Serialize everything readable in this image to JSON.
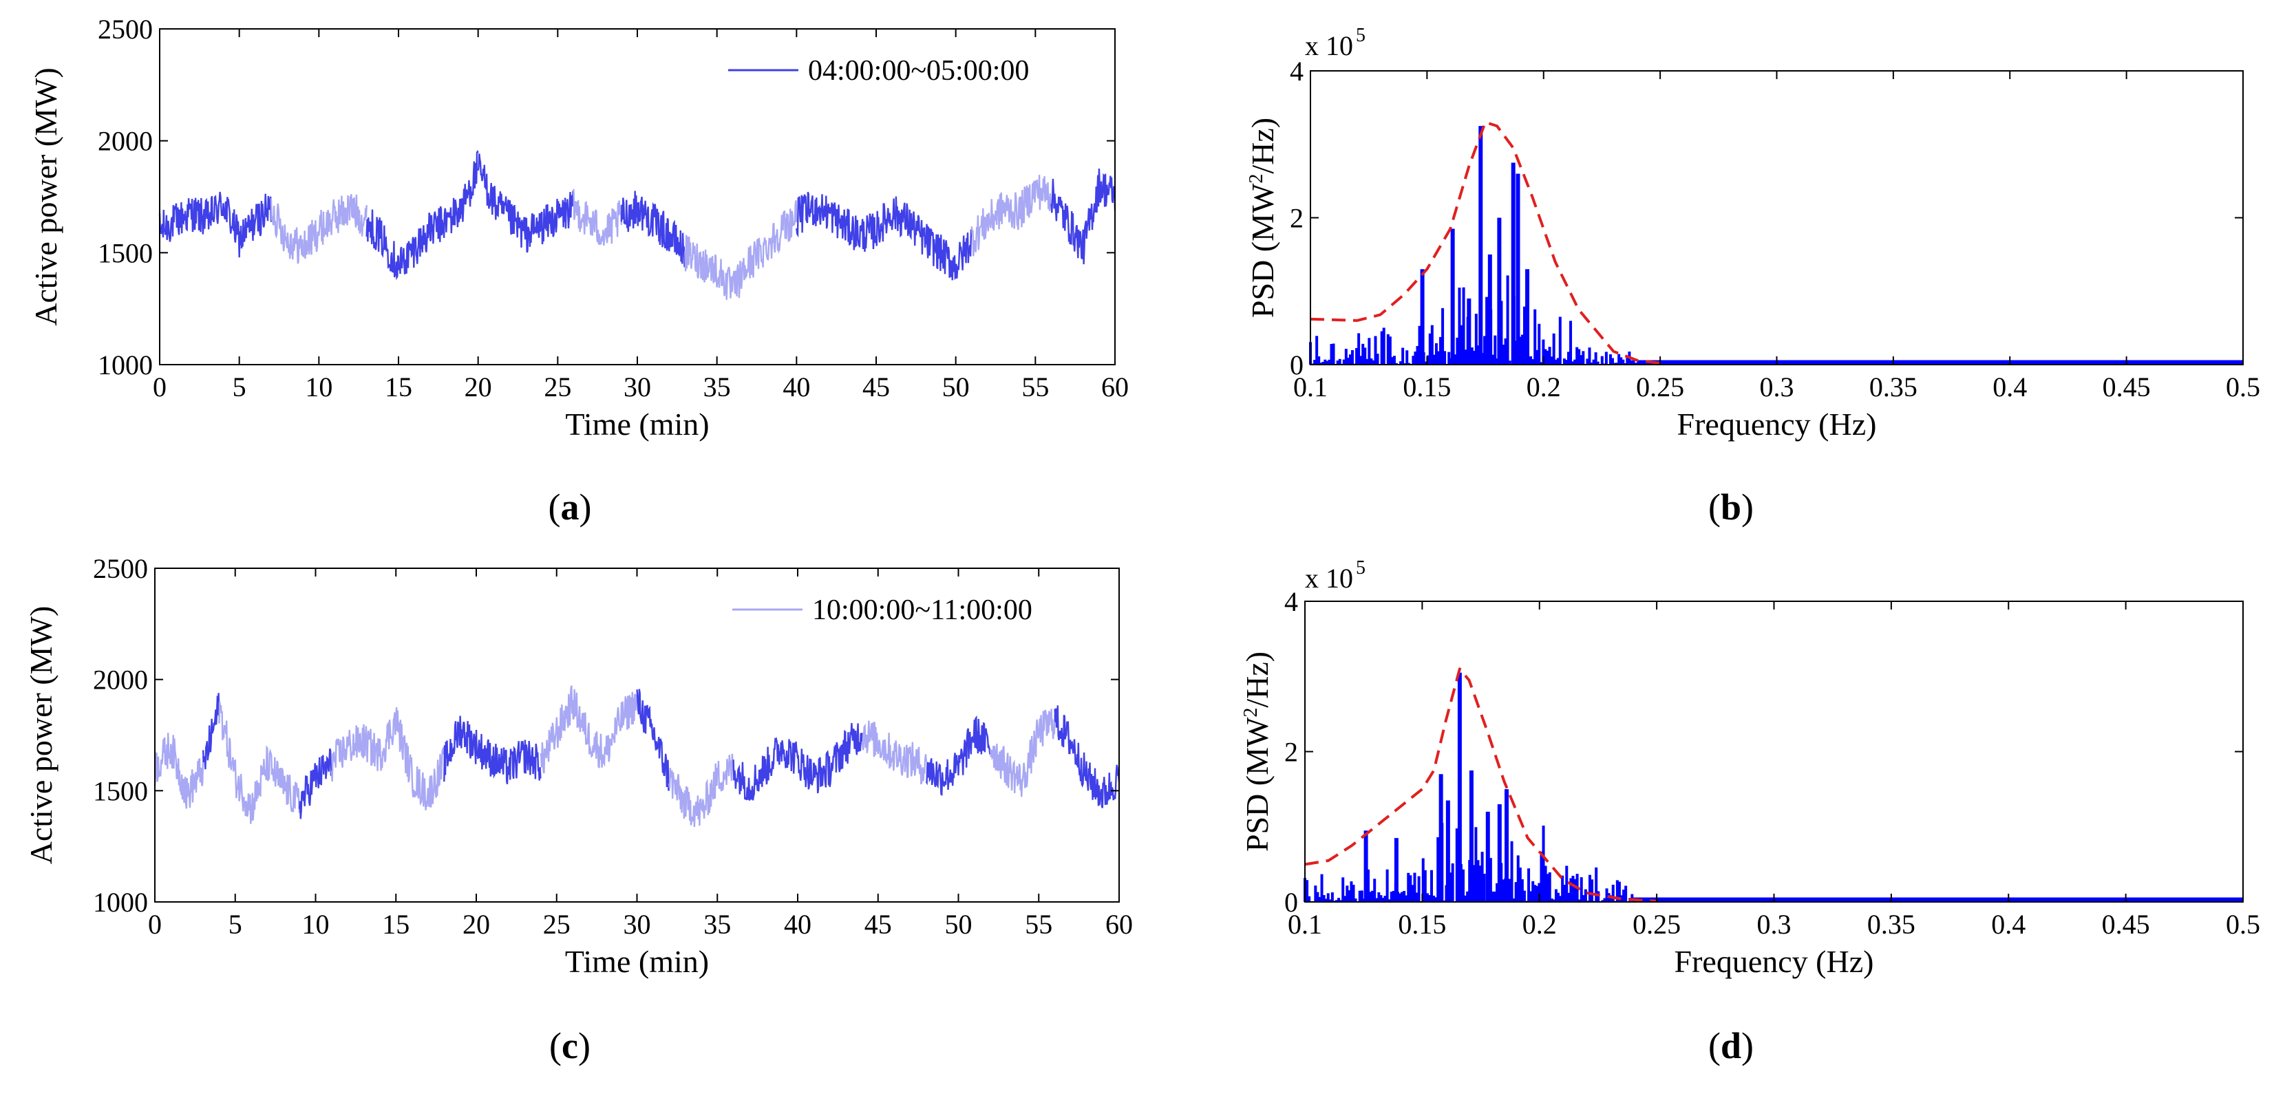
{
  "colors": {
    "dark_series": "#4040e8",
    "light_series": "#a8a8f4",
    "psd_bar": "#0000ff",
    "envelope": "#e02020",
    "axes": "#000000"
  },
  "chart_data": [
    {
      "id": "a",
      "type": "line",
      "caption_letter": "a",
      "xlabel": "Time (min)",
      "ylabel": "Active power (MW)",
      "xlim": [
        0,
        60
      ],
      "ylim": [
        1000,
        2500
      ],
      "xticks": [
        0,
        5,
        10,
        15,
        20,
        25,
        30,
        35,
        40,
        45,
        50,
        55,
        60
      ],
      "yticks": [
        1000,
        1500,
        2000,
        2500
      ],
      "legend": "04:00:00~05:00:00",
      "legend_color": "#4040e8",
      "series": {
        "name": "04:00:00~05:00:00",
        "t": [
          0,
          1,
          2,
          3,
          4,
          5,
          6,
          7,
          8,
          9,
          10,
          11,
          12,
          13,
          14,
          15,
          16,
          17,
          18,
          19,
          20,
          21,
          22,
          23,
          24,
          25,
          26,
          27,
          28,
          29,
          30,
          31,
          32,
          33,
          34,
          35,
          36,
          37,
          38,
          39,
          40,
          41,
          42,
          43,
          44,
          45,
          46,
          47,
          48,
          49,
          50,
          51,
          52,
          53,
          54,
          55,
          56,
          57,
          58,
          59,
          60
        ],
        "values": [
          1600,
          1640,
          1680,
          1650,
          1720,
          1560,
          1640,
          1700,
          1560,
          1520,
          1600,
          1660,
          1700,
          1640,
          1560,
          1440,
          1520,
          1600,
          1640,
          1700,
          1880,
          1720,
          1650,
          1580,
          1620,
          1660,
          1700,
          1640,
          1580,
          1660,
          1700,
          1640,
          1580,
          1500,
          1460,
          1420,
          1330,
          1450,
          1520,
          1600,
          1660,
          1700,
          1680,
          1620,
          1580,
          1600,
          1680,
          1640,
          1560,
          1500,
          1440,
          1560,
          1640,
          1700,
          1680,
          1780,
          1760,
          1640,
          1520,
          1800,
          1760
        ],
        "segments": [
          [
            0,
            7,
            "dark"
          ],
          [
            7,
            13,
            "light"
          ],
          [
            13,
            20,
            "dark"
          ],
          [
            20,
            26,
            "dark"
          ],
          [
            26,
            29,
            "light"
          ],
          [
            29,
            33,
            "dark"
          ],
          [
            33,
            40,
            "light"
          ],
          [
            40,
            51,
            "dark"
          ],
          [
            51,
            56,
            "light"
          ],
          [
            56,
            60,
            "dark"
          ]
        ]
      }
    },
    {
      "id": "b",
      "type": "bar",
      "caption_letter": "b",
      "xlabel": "Frequency (Hz)",
      "ylabel_main": "PSD (MW",
      "ylabel_sup": "2",
      "ylabel_end": "/Hz)",
      "multiplier_main": "x 10",
      "multiplier_sup": "5",
      "xlim": [
        0.1,
        0.5
      ],
      "ylim": [
        0,
        4
      ],
      "xticks": [
        "0.1",
        "0.15",
        "0.2",
        "0.25",
        "0.3",
        "0.35",
        "0.4",
        "0.45",
        "0.5"
      ],
      "yticks": [
        "0",
        "2",
        "4"
      ],
      "peaks": [
        {
          "f": 0.148,
          "v": 1.3
        },
        {
          "f": 0.161,
          "v": 1.85
        },
        {
          "f": 0.168,
          "v": 0.9
        },
        {
          "f": 0.173,
          "v": 3.25
        },
        {
          "f": 0.177,
          "v": 1.5
        },
        {
          "f": 0.181,
          "v": 2.0
        },
        {
          "f": 0.187,
          "v": 2.75
        },
        {
          "f": 0.189,
          "v": 2.6
        },
        {
          "f": 0.193,
          "v": 1.3
        }
      ],
      "envelope": {
        "f": [
          0.1,
          0.12,
          0.13,
          0.14,
          0.15,
          0.16,
          0.168,
          0.175,
          0.18,
          0.187,
          0.195,
          0.205,
          0.215,
          0.23,
          0.24,
          0.25
        ],
        "v": [
          0.62,
          0.6,
          0.68,
          0.95,
          1.3,
          1.85,
          2.7,
          3.3,
          3.25,
          2.95,
          2.3,
          1.4,
          0.75,
          0.18,
          0.06,
          0.02
        ]
      }
    },
    {
      "id": "c",
      "type": "line",
      "caption_letter": "c",
      "xlabel": "Time (min)",
      "ylabel": "Active power (MW)",
      "xlim": [
        0,
        60
      ],
      "ylim": [
        1000,
        2500
      ],
      "xticks": [
        0,
        5,
        10,
        15,
        20,
        25,
        30,
        35,
        40,
        45,
        50,
        55,
        60
      ],
      "yticks": [
        1000,
        1500,
        2000,
        2500
      ],
      "legend": "10:00:00~11:00:00",
      "legend_color": "#a8a8f4",
      "series": {
        "name": "10:00:00~11:00:00",
        "t": [
          0,
          1,
          2,
          3,
          4,
          5,
          6,
          7,
          8,
          9,
          10,
          11,
          12,
          13,
          14,
          15,
          16,
          17,
          18,
          19,
          20,
          21,
          22,
          23,
          24,
          25,
          26,
          27,
          28,
          29,
          30,
          31,
          32,
          33,
          34,
          35,
          36,
          37,
          38,
          39,
          40,
          41,
          42,
          43,
          44,
          45,
          46,
          47,
          48,
          49,
          50,
          51,
          52,
          53,
          54,
          55,
          56,
          57,
          58,
          59,
          60
        ],
        "values": [
          1600,
          1700,
          1480,
          1600,
          1880,
          1560,
          1420,
          1620,
          1520,
          1440,
          1560,
          1620,
          1700,
          1720,
          1660,
          1820,
          1560,
          1480,
          1620,
          1780,
          1700,
          1640,
          1600,
          1660,
          1620,
          1760,
          1900,
          1740,
          1660,
          1820,
          1900,
          1760,
          1560,
          1440,
          1400,
          1560,
          1600,
          1520,
          1600,
          1700,
          1640,
          1560,
          1600,
          1700,
          1760,
          1720,
          1660,
          1640,
          1600,
          1560,
          1600,
          1760,
          1700,
          1600,
          1540,
          1760,
          1820,
          1720,
          1560,
          1480,
          1560
        ],
        "segments": [
          [
            0,
            3,
            "light"
          ],
          [
            3,
            4,
            "dark"
          ],
          [
            4,
            9,
            "light"
          ],
          [
            9,
            11,
            "dark"
          ],
          [
            11,
            18,
            "light"
          ],
          [
            18,
            24,
            "dark"
          ],
          [
            24,
            30,
            "light"
          ],
          [
            30,
            32,
            "dark"
          ],
          [
            32,
            36,
            "light"
          ],
          [
            36,
            44,
            "dark"
          ],
          [
            44,
            48,
            "light"
          ],
          [
            48,
            52,
            "dark"
          ],
          [
            52,
            56,
            "light"
          ],
          [
            56,
            60,
            "dark"
          ]
        ]
      }
    },
    {
      "id": "d",
      "type": "bar",
      "caption_letter": "d",
      "xlabel": "Frequency (Hz)",
      "ylabel_main": "PSD (MW",
      "ylabel_sup": "2",
      "ylabel_end": "/Hz)",
      "multiplier_main": "x 10",
      "multiplier_sup": "5",
      "xlim": [
        0.1,
        0.5
      ],
      "ylim": [
        0,
        4
      ],
      "xticks": [
        "0.1",
        "0.15",
        "0.2",
        "0.25",
        "0.3",
        "0.35",
        "0.4",
        "0.45",
        "0.5"
      ],
      "yticks": [
        "0",
        "2",
        "4"
      ],
      "peaks": [
        {
          "f": 0.126,
          "v": 0.95
        },
        {
          "f": 0.139,
          "v": 0.85
        },
        {
          "f": 0.158,
          "v": 1.7
        },
        {
          "f": 0.161,
          "v": 1.35
        },
        {
          "f": 0.166,
          "v": 3.05
        },
        {
          "f": 0.171,
          "v": 1.75
        },
        {
          "f": 0.178,
          "v": 1.2
        },
        {
          "f": 0.183,
          "v": 1.3
        },
        {
          "f": 0.186,
          "v": 1.5
        }
      ],
      "envelope": {
        "f": [
          0.1,
          0.11,
          0.12,
          0.13,
          0.14,
          0.15,
          0.155,
          0.16,
          0.166,
          0.17,
          0.178,
          0.185,
          0.195,
          0.21,
          0.22,
          0.235,
          0.25
        ],
        "v": [
          0.5,
          0.55,
          0.75,
          1.0,
          1.25,
          1.5,
          1.75,
          2.4,
          3.1,
          2.95,
          2.25,
          1.6,
          0.85,
          0.3,
          0.12,
          0.04,
          0.01
        ]
      }
    }
  ]
}
